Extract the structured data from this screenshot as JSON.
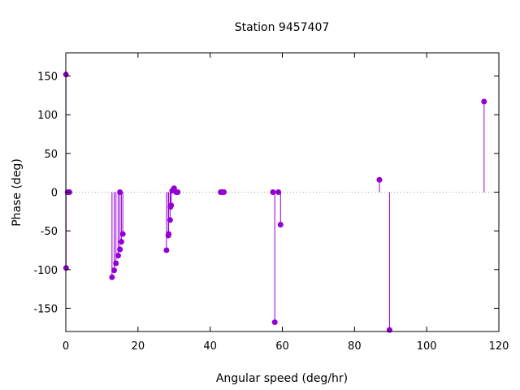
{
  "chart_data": {
    "type": "scatter",
    "style": "impulse-with-points",
    "title": "Station 9457407",
    "xlabel": "Angular speed (deg/hr)",
    "ylabel": "Phase (deg)",
    "xlim": [
      0,
      120
    ],
    "ylim": [
      -180,
      180
    ],
    "xticks": [
      0,
      20,
      40,
      60,
      80,
      100,
      120
    ],
    "yticks": [
      -150,
      -100,
      -50,
      0,
      50,
      100,
      150
    ],
    "grid": false,
    "zero_line": true,
    "color": "#9400d3",
    "series": [
      {
        "points": [
          [
            0.04,
            152
          ],
          [
            0.08,
            -98
          ],
          [
            0.5,
            0
          ],
          [
            0.6,
            0
          ],
          [
            0.9,
            0
          ],
          [
            1.0,
            0
          ],
          [
            12.8,
            -110
          ],
          [
            13.4,
            -101
          ],
          [
            13.9,
            -92
          ],
          [
            14.5,
            -82
          ],
          [
            15.0,
            0
          ],
          [
            15.0,
            -74
          ],
          [
            15.4,
            -64
          ],
          [
            15.8,
            -54
          ],
          [
            27.9,
            -75
          ],
          [
            28.4,
            -56
          ],
          [
            28.5,
            -54
          ],
          [
            28.9,
            -36
          ],
          [
            29.0,
            -19
          ],
          [
            29.2,
            -17
          ],
          [
            29.5,
            2
          ],
          [
            30.0,
            5
          ],
          [
            30.6,
            0
          ],
          [
            31.0,
            0
          ],
          [
            42.9,
            0
          ],
          [
            43.3,
            0
          ],
          [
            43.8,
            0
          ],
          [
            57.4,
            0
          ],
          [
            57.9,
            -168
          ],
          [
            58.9,
            0
          ],
          [
            59.5,
            -42
          ],
          [
            86.9,
            16
          ],
          [
            89.7,
            -178
          ],
          [
            115.9,
            117
          ]
        ]
      }
    ]
  }
}
